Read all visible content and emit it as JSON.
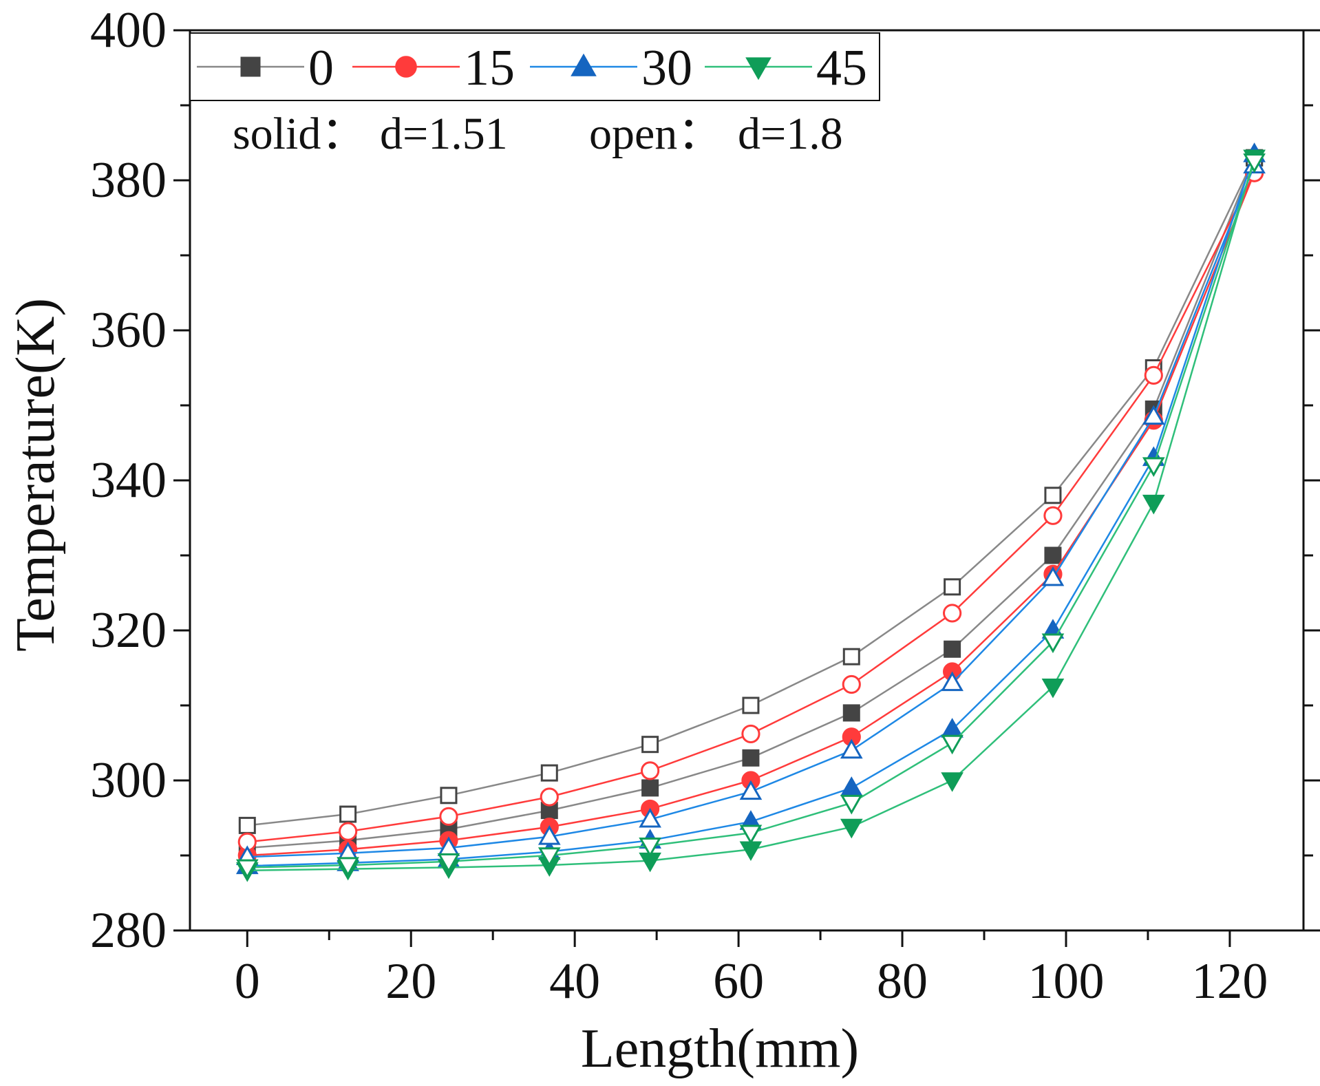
{
  "chart_data": {
    "type": "line",
    "xlabel": "Length(mm)",
    "ylabel": "Temperature(K)",
    "xlim": [
      -7,
      129
    ],
    "ylim": [
      280,
      400
    ],
    "xticks": [
      0,
      20,
      40,
      60,
      80,
      100,
      120
    ],
    "yticks": [
      280,
      300,
      320,
      340,
      360,
      380,
      400
    ],
    "x": [
      0,
      12.3,
      24.6,
      36.9,
      49.2,
      61.5,
      73.8,
      86.1,
      98.4,
      110.7,
      123
    ],
    "legend_position": "top-left",
    "annotation": {
      "solid_label": "solid：",
      "solid_value": "d=1.51",
      "open_label": "open：",
      "open_value": "d=1.8"
    },
    "series": [
      {
        "name": "0",
        "marker": "square",
        "color": "#444444",
        "line_color": "#888888",
        "solid": [
          291.0,
          292.0,
          293.5,
          296.0,
          299.0,
          303.0,
          309.0,
          317.5,
          330.0,
          349.5,
          383.0
        ],
        "open": [
          294.0,
          295.5,
          298.0,
          301.0,
          304.8,
          310.0,
          316.5,
          325.8,
          338.0,
          355.0,
          383.0
        ]
      },
      {
        "name": "15",
        "marker": "circle",
        "color": "#ff3b3b",
        "line_color": "#ff3b3b",
        "solid": [
          290.0,
          290.8,
          292.0,
          293.8,
          296.2,
          300.0,
          305.8,
          314.5,
          327.5,
          348.0,
          381.0
        ],
        "open": [
          291.8,
          293.2,
          295.2,
          297.8,
          301.3,
          306.2,
          312.8,
          322.3,
          335.3,
          354.0,
          381.0
        ]
      },
      {
        "name": "30",
        "marker": "triangle-up",
        "color": "#1565c0",
        "line_color": "#1e88e5",
        "solid": [
          288.6,
          289.0,
          289.5,
          290.5,
          292.0,
          294.5,
          299.0,
          306.8,
          320.0,
          343.0,
          383.5
        ],
        "open": [
          289.8,
          290.3,
          291.0,
          292.5,
          294.8,
          298.5,
          304.0,
          313.0,
          327.0,
          348.5,
          382.0
        ]
      },
      {
        "name": "45",
        "marker": "triangle-down",
        "color": "#0f9d58",
        "line_color": "#2fbf7a",
        "solid": [
          288.0,
          288.2,
          288.4,
          288.7,
          289.3,
          290.8,
          293.8,
          300.0,
          312.5,
          337.0,
          383.0
        ],
        "open": [
          288.4,
          288.7,
          289.2,
          290.0,
          291.3,
          293.0,
          297.0,
          305.0,
          318.5,
          342.0,
          382.5
        ]
      }
    ]
  }
}
